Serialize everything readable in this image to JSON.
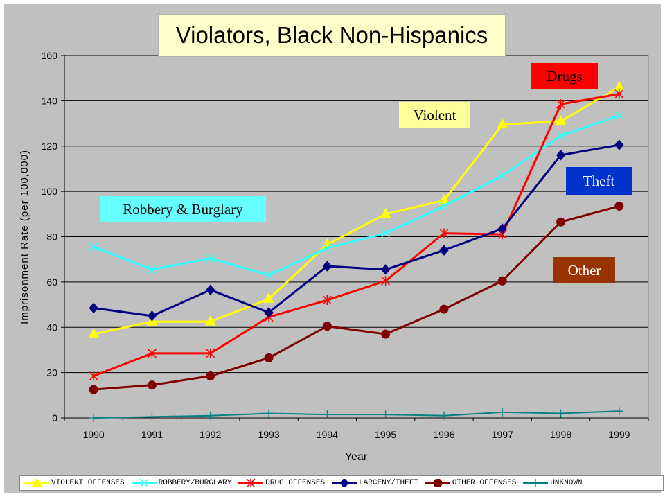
{
  "chart_data": {
    "type": "line",
    "title": "Violators, Black Non-Hispanics",
    "xlabel": "Year",
    "ylabel": "Imprisonment Rate (per 100,000)",
    "ylim": [
      0,
      160
    ],
    "yticks": [
      0,
      20,
      40,
      60,
      80,
      100,
      120,
      140,
      160
    ],
    "grid": true,
    "legend_position": "bottom",
    "categories": [
      "1990",
      "1991",
      "1992",
      "1993",
      "1994",
      "1995",
      "1996",
      "1997",
      "1998",
      "1999"
    ],
    "series": [
      {
        "name": "VIOLENT OFFENSES",
        "color": "#ffff00",
        "marker": "triangle",
        "values": [
          37,
          42.5,
          42.5,
          52.5,
          76.5,
          90,
          96,
          129.5,
          131,
          146
        ]
      },
      {
        "name": "ROBBERY/BURGLARY",
        "color": "#33ffff",
        "marker": "x",
        "values": [
          75.5,
          65.5,
          70.5,
          63,
          75,
          81.5,
          93.5,
          107,
          124.5,
          133.5
        ]
      },
      {
        "name": "DRUG OFFENSES",
        "color": "#ff0000",
        "marker": "star",
        "values": [
          18.5,
          28.5,
          28.5,
          44.5,
          52,
          60.5,
          81.5,
          81,
          138.5,
          143
        ]
      },
      {
        "name": "LARCENY/THEFT",
        "color": "#000080",
        "marker": "diamond",
        "values": [
          48.5,
          45,
          56.5,
          46.5,
          67,
          65.5,
          74,
          83.5,
          116,
          120.5
        ]
      },
      {
        "name": "OTHER OFFENSES",
        "color": "#800000",
        "marker": "circle",
        "values": [
          12.5,
          14.5,
          18.5,
          26.5,
          40.5,
          37,
          48,
          60.5,
          86.5,
          93.5
        ]
      },
      {
        "name": "UNKNOWN",
        "color": "#008080",
        "marker": "plus",
        "values": [
          0,
          0.5,
          1,
          2,
          1.5,
          1.5,
          1,
          2.5,
          2,
          3
        ]
      }
    ],
    "annotations": [
      {
        "text": "Drugs",
        "bg": "#ff0000",
        "fg": "#000000"
      },
      {
        "text": "Violent",
        "bg": "#ffff99",
        "fg": "#000000"
      },
      {
        "text": "Theft",
        "bg": "#0033cc",
        "fg": "#ffffff"
      },
      {
        "text": "Robbery & Burglary",
        "bg": "#66ffff",
        "fg": "#000000"
      },
      {
        "text": "Other",
        "bg": "#993300",
        "fg": "#ffffff"
      }
    ]
  }
}
